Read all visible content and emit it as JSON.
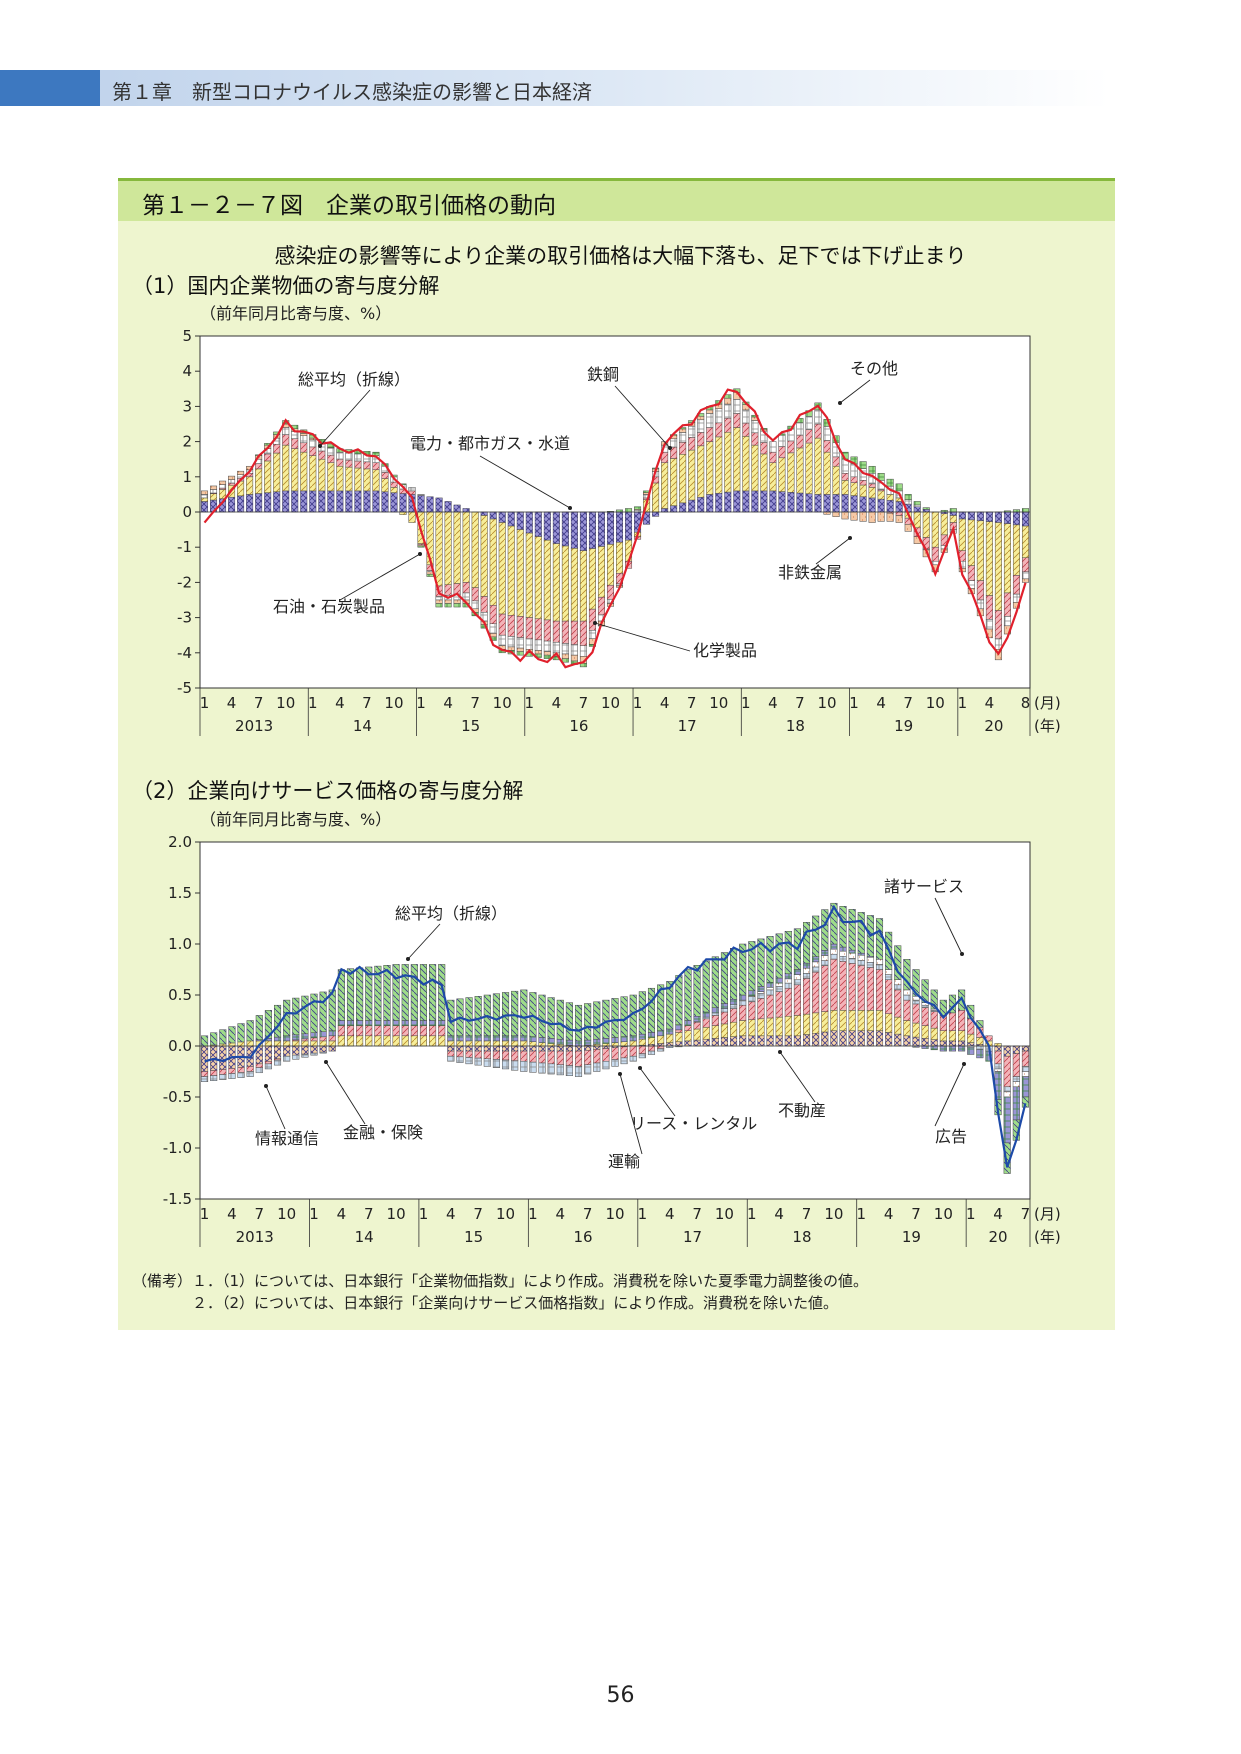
{
  "header": {
    "chapter_title": "第１章　新型コロナウイルス感染症の影響と日本経済"
  },
  "figure": {
    "title": "第１－２－７図　企業の取引価格の動向",
    "subtitle": "感染症の影響等により企業の取引価格は大幅下落も、足下では下げ止まり"
  },
  "chart_data": [
    {
      "type": "bar",
      "stacked": true,
      "section_title": "（1）国内企業物価の寄与度分解",
      "unit_label": "（前年同月比寄与度、%）",
      "ylim": [
        -5,
        5
      ],
      "yticks": [
        "5",
        "4",
        "3",
        "2",
        "1",
        "0",
        "-1",
        "-2",
        "-3",
        "-4",
        "-5"
      ],
      "x_start": "2013-01",
      "x_end": "2020-08",
      "x_month_ticks": [
        "1",
        "4",
        "7",
        "10",
        "1",
        "4",
        "7",
        "10",
        "1",
        "4",
        "7",
        "10",
        "1",
        "4",
        "7",
        "10",
        "1",
        "4",
        "7",
        "10",
        "1",
        "4",
        "7",
        "10",
        "1",
        "4",
        "7",
        "10",
        "1",
        "4",
        "8"
      ],
      "year_labels": [
        "2013",
        "14",
        "15",
        "16",
        "17",
        "18",
        "19",
        "20"
      ],
      "month_unit": "(月)",
      "year_unit": "(年)",
      "anchors": [
        {
          "m": "2013-01",
          "total": -0.3,
          "elec": 0.3,
          "oil": 0.1,
          "chem": 0.0,
          "steel": 0.1,
          "nonf": 0.1,
          "other": 0.0
        },
        {
          "m": "2013-06",
          "total": 1.2,
          "elec": 0.5,
          "oil": 0.5,
          "chem": 0.1,
          "steel": 0.1,
          "nonf": 0.1,
          "other": 0.0
        },
        {
          "m": "2013-10",
          "total": 2.5,
          "elec": 0.6,
          "oil": 1.3,
          "chem": 0.3,
          "steel": 0.2,
          "nonf": 0.1,
          "other": 0.1
        },
        {
          "m": "2014-04",
          "total": 1.8,
          "elec": 0.6,
          "oil": 0.7,
          "chem": 0.2,
          "steel": 0.2,
          "nonf": 0.0,
          "other": 0.1
        },
        {
          "m": "2014-08",
          "total": 1.6,
          "elec": 0.6,
          "oil": 0.6,
          "chem": 0.2,
          "steel": 0.2,
          "nonf": 0.0,
          "other": 0.1
        },
        {
          "m": "2014-12",
          "total": 0.4,
          "elec": 0.5,
          "oil": -0.3,
          "chem": 0.1,
          "steel": 0.1,
          "nonf": 0.0,
          "other": 0.0
        },
        {
          "m": "2015-03",
          "total": -2.3,
          "elec": 0.4,
          "oil": -2.1,
          "chem": -0.3,
          "steel": -0.1,
          "nonf": -0.1,
          "other": -0.1
        },
        {
          "m": "2015-06",
          "total": -2.5,
          "elec": 0.1,
          "oil": -2.0,
          "chem": -0.3,
          "steel": -0.2,
          "nonf": -0.1,
          "other": -0.1
        },
        {
          "m": "2015-10",
          "total": -4.0,
          "elec": -0.3,
          "oil": -2.6,
          "chem": -0.6,
          "steel": -0.3,
          "nonf": -0.1,
          "other": -0.1
        },
        {
          "m": "2016-04",
          "total": -4.2,
          "elec": -0.9,
          "oil": -2.2,
          "chem": -0.6,
          "steel": -0.3,
          "nonf": -0.1,
          "other": -0.1
        },
        {
          "m": "2016-07",
          "total": -4.4,
          "elec": -1.1,
          "oil": -2.0,
          "chem": -0.7,
          "steel": -0.3,
          "nonf": -0.2,
          "other": -0.1
        },
        {
          "m": "2016-12",
          "total": -1.5,
          "elec": -0.8,
          "oil": -0.6,
          "chem": -0.2,
          "steel": 0.0,
          "nonf": 0.0,
          "other": 0.1
        },
        {
          "m": "2017-04",
          "total": 2.0,
          "elec": 0.1,
          "oil": 1.3,
          "chem": 0.3,
          "steel": 0.2,
          "nonf": 0.1,
          "other": 0.0
        },
        {
          "m": "2017-09",
          "total": 3.0,
          "elec": 0.5,
          "oil": 1.5,
          "chem": 0.4,
          "steel": 0.4,
          "nonf": 0.1,
          "other": 0.1
        },
        {
          "m": "2017-12",
          "total": 3.5,
          "elec": 0.6,
          "oil": 1.8,
          "chem": 0.4,
          "steel": 0.4,
          "nonf": 0.2,
          "other": 0.1
        },
        {
          "m": "2018-04",
          "total": 2.0,
          "elec": 0.6,
          "oil": 0.8,
          "chem": 0.3,
          "steel": 0.3,
          "nonf": 0.0,
          "other": 0.0
        },
        {
          "m": "2018-09",
          "total": 3.1,
          "elec": 0.5,
          "oil": 1.6,
          "chem": 0.4,
          "steel": 0.4,
          "nonf": 0.0,
          "other": 0.2
        },
        {
          "m": "2018-12",
          "total": 1.5,
          "elec": 0.5,
          "oil": 0.4,
          "chem": 0.2,
          "steel": 0.4,
          "nonf": -0.2,
          "other": 0.2
        },
        {
          "m": "2019-03",
          "total": 1.0,
          "elec": 0.4,
          "oil": 0.3,
          "chem": 0.1,
          "steel": 0.3,
          "nonf": -0.3,
          "other": 0.2
        },
        {
          "m": "2019-06",
          "total": 0.5,
          "elec": 0.3,
          "oil": 0.1,
          "chem": -0.1,
          "steel": 0.2,
          "nonf": -0.2,
          "other": 0.2
        },
        {
          "m": "2019-10",
          "total": -1.7,
          "elec": 0.0,
          "oil": -1.0,
          "chem": -0.4,
          "steel": -0.1,
          "nonf": -0.2,
          "other": 0.0
        },
        {
          "m": "2019-12",
          "total": -0.5,
          "elec": -0.1,
          "oil": -0.2,
          "chem": -0.2,
          "steel": -0.1,
          "nonf": 0.0,
          "other": 0.1
        },
        {
          "m": "2020-01",
          "total": -1.7,
          "elec": -0.2,
          "oil": -0.9,
          "chem": -0.3,
          "steel": -0.2,
          "nonf": -0.1,
          "other": 0.0
        },
        {
          "m": "2020-05",
          "total": -4.2,
          "elec": -0.3,
          "oil": -2.5,
          "chem": -0.8,
          "steel": -0.3,
          "nonf": -0.3,
          "other": 0.0
        },
        {
          "m": "2020-08",
          "total": -2.1,
          "elec": -0.4,
          "oil": -0.9,
          "chem": -0.4,
          "steel": -0.2,
          "nonf": -0.1,
          "other": 0.1
        }
      ],
      "components": [
        {
          "key": "elec",
          "name": "電力・都市ガス・水道",
          "color": "#9a95d6"
        },
        {
          "key": "oil",
          "name": "石油・石炭製品",
          "color": "#f7ee9a"
        },
        {
          "key": "chem",
          "name": "化学製品",
          "color": "#f3b3b8"
        },
        {
          "key": "steel",
          "name": "鉄鋼",
          "color": "#ffffff"
        },
        {
          "key": "nonf",
          "name": "非鉄金属",
          "color": "#f5c9a6"
        },
        {
          "key": "other",
          "name": "その他",
          "color": "#9fdc8a"
        }
      ],
      "line": {
        "name": "総平均（折線）",
        "color": "#e0202c"
      },
      "annotations": [
        "総平均（折線）",
        "電力・都市ガス・水道",
        "鉄鋼",
        "その他",
        "非鉄金属",
        "石油・石炭製品",
        "化学製品"
      ]
    },
    {
      "type": "bar",
      "stacked": true,
      "section_title": "（2）企業向けサービス価格の寄与度分解",
      "unit_label": "（前年同月比寄与度、%）",
      "ylim": [
        -1.5,
        2.0
      ],
      "yticks": [
        "2.0",
        "1.5",
        "1.0",
        "0.5",
        "0.0",
        "-0.5",
        "-1.0",
        "-1.5"
      ],
      "x_start": "2013-01",
      "x_end": "2020-07",
      "x_month_ticks": [
        "1",
        "4",
        "7",
        "10",
        "1",
        "4",
        "7",
        "10",
        "1",
        "4",
        "7",
        "10",
        "1",
        "4",
        "7",
        "10",
        "1",
        "4",
        "7",
        "10",
        "1",
        "4",
        "7",
        "10",
        "1",
        "4",
        "7",
        "10",
        "1",
        "4",
        "7"
      ],
      "year_labels": [
        "2013",
        "14",
        "15",
        "16",
        "17",
        "18",
        "19",
        "20"
      ],
      "month_unit": "(月)",
      "year_unit": "(年)",
      "anchors": [
        {
          "m": "2013-01",
          "total": -0.15,
          "info": -0.25,
          "fin": 0.0,
          "trans": -0.05,
          "lease": -0.05,
          "real": 0.0,
          "ad": 0.0,
          "misc": 0.1
        },
        {
          "m": "2013-06",
          "total": -0.1,
          "info": -0.2,
          "fin": 0.05,
          "trans": -0.05,
          "lease": -0.05,
          "real": 0.0,
          "ad": 0.0,
          "misc": 0.2
        },
        {
          "m": "2013-10",
          "total": 0.3,
          "info": -0.1,
          "fin": 0.05,
          "trans": 0.0,
          "lease": -0.05,
          "real": 0.0,
          "ad": 0.05,
          "misc": 0.35
        },
        {
          "m": "2014-03",
          "total": 0.5,
          "info": -0.05,
          "fin": 0.05,
          "trans": 0.05,
          "lease": 0.0,
          "real": 0.0,
          "ad": 0.05,
          "misc": 0.4
        },
        {
          "m": "2014-04",
          "total": 0.75,
          "info": 0.0,
          "fin": 0.1,
          "trans": 0.1,
          "lease": 0.0,
          "real": 0.0,
          "ad": 0.05,
          "misc": 0.5
        },
        {
          "m": "2014-10",
          "total": 0.7,
          "info": 0.0,
          "fin": 0.1,
          "trans": 0.1,
          "lease": 0.0,
          "real": 0.0,
          "ad": 0.05,
          "misc": 0.55
        },
        {
          "m": "2015-03",
          "total": 0.6,
          "info": 0.0,
          "fin": 0.1,
          "trans": 0.1,
          "lease": 0.0,
          "real": 0.0,
          "ad": 0.05,
          "misc": 0.55
        },
        {
          "m": "2015-04",
          "total": 0.25,
          "info": -0.05,
          "fin": 0.05,
          "trans": -0.05,
          "lease": -0.05,
          "real": 0.0,
          "ad": 0.05,
          "misc": 0.35
        },
        {
          "m": "2015-12",
          "total": 0.3,
          "info": -0.05,
          "fin": 0.05,
          "trans": -0.1,
          "lease": -0.1,
          "real": 0.0,
          "ad": 0.05,
          "misc": 0.45
        },
        {
          "m": "2016-06",
          "total": 0.15,
          "info": -0.05,
          "fin": 0.0,
          "trans": -0.15,
          "lease": -0.1,
          "real": 0.0,
          "ad": 0.05,
          "misc": 0.35
        },
        {
          "m": "2016-12",
          "total": 0.3,
          "info": 0.0,
          "fin": 0.05,
          "trans": -0.1,
          "lease": -0.05,
          "real": 0.0,
          "ad": 0.05,
          "misc": 0.4
        },
        {
          "m": "2017-06",
          "total": 0.75,
          "info": 0.05,
          "fin": 0.1,
          "trans": 0.05,
          "lease": 0.0,
          "real": 0.0,
          "ad": 0.05,
          "misc": 0.5
        },
        {
          "m": "2017-12",
          "total": 0.95,
          "info": 0.1,
          "fin": 0.15,
          "trans": 0.15,
          "lease": 0.05,
          "real": 0.0,
          "ad": 0.05,
          "misc": 0.5
        },
        {
          "m": "2018-06",
          "total": 1.0,
          "info": 0.1,
          "fin": 0.2,
          "trans": 0.3,
          "lease": 0.05,
          "real": 0.05,
          "ad": 0.05,
          "misc": 0.4
        },
        {
          "m": "2018-10",
          "total": 1.3,
          "info": 0.15,
          "fin": 0.2,
          "trans": 0.5,
          "lease": 0.05,
          "real": 0.05,
          "ad": 0.05,
          "misc": 0.4
        },
        {
          "m": "2019-03",
          "total": 1.1,
          "info": 0.15,
          "fin": 0.2,
          "trans": 0.4,
          "lease": 0.05,
          "real": 0.05,
          "ad": 0.0,
          "misc": 0.4
        },
        {
          "m": "2019-06",
          "total": 0.6,
          "info": 0.1,
          "fin": 0.15,
          "trans": 0.2,
          "lease": 0.05,
          "real": 0.05,
          "ad": 0.0,
          "misc": 0.3
        },
        {
          "m": "2019-10",
          "total": 0.3,
          "info": 0.05,
          "fin": 0.1,
          "trans": 0.15,
          "lease": 0.0,
          "real": 0.0,
          "ad": -0.05,
          "misc": 0.15
        },
        {
          "m": "2019-12",
          "total": 0.45,
          "info": 0.05,
          "fin": 0.1,
          "trans": 0.2,
          "lease": 0.0,
          "real": 0.0,
          "ad": -0.05,
          "misc": 0.2
        },
        {
          "m": "2020-03",
          "total": 0.0,
          "info": 0.0,
          "fin": 0.05,
          "trans": 0.05,
          "lease": -0.05,
          "real": 0.0,
          "ad": -0.1,
          "misc": 0.0
        },
        {
          "m": "2020-05",
          "total": -1.25,
          "info": -0.1,
          "fin": 0.0,
          "trans": -0.3,
          "lease": -0.05,
          "real": -0.05,
          "ad": -0.45,
          "misc": -0.3
        },
        {
          "m": "2020-07",
          "total": -0.55,
          "info": -0.05,
          "fin": 0.0,
          "trans": -0.15,
          "lease": -0.05,
          "real": -0.05,
          "ad": -0.2,
          "misc": -0.1
        }
      ],
      "components": [
        {
          "key": "info",
          "name": "情報通信",
          "color": "#f6d2a6"
        },
        {
          "key": "fin",
          "name": "金融・保険",
          "color": "#f7ee9a"
        },
        {
          "key": "trans",
          "name": "運輸",
          "color": "#f3b3b8"
        },
        {
          "key": "lease",
          "name": "リース・レンタル",
          "color": "#c9dcef"
        },
        {
          "key": "real",
          "name": "不動産",
          "color": "#ffffff"
        },
        {
          "key": "ad",
          "name": "広告",
          "color": "#9a95d6"
        },
        {
          "key": "misc",
          "name": "諸サービス",
          "color": "#9fdc8a"
        }
      ],
      "line": {
        "name": "総平均（折線）",
        "color": "#1d4aa8"
      },
      "annotations": [
        "総平均（折線）",
        "諸サービス",
        "情報通信",
        "金融・保険",
        "リース・レンタル",
        "不動産",
        "運輸",
        "広告"
      ]
    }
  ],
  "notes": {
    "line1": "（備考）１．（1）については、日本銀行「企業物価指数」により作成。消費税を除いた夏季電力調整後の値。",
    "line2": "　　　　２．（2）については、日本銀行「企業向けサービス価格指数」により作成。消費税を除いた値。"
  },
  "page_number": "56"
}
